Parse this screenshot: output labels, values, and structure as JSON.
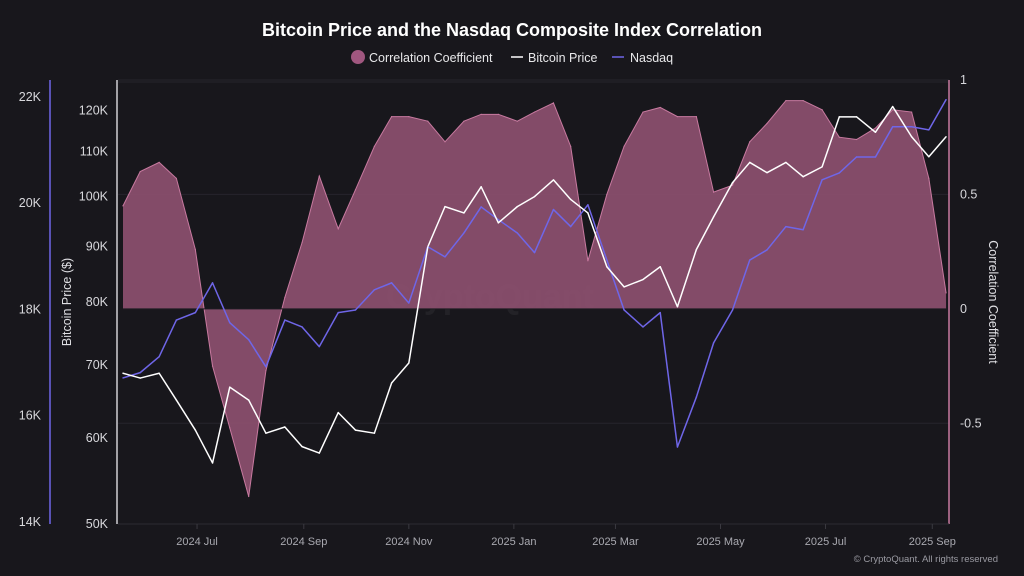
{
  "chart_data": {
    "type": "line",
    "title": "Bitcoin Price and the Nasdaq Composite Index Correlation",
    "legend": {
      "placement": "top-center",
      "entries": [
        {
          "name": "Correlation Coefficient",
          "color": "#a0577f",
          "marker": "circle"
        },
        {
          "name": "Bitcoin Price",
          "color": "#ffffff",
          "marker": "line"
        },
        {
          "name": "Nasdaq",
          "color": "#6f66e8",
          "marker": "line"
        }
      ]
    },
    "x": [
      "2024-05-19",
      "2024-05-29",
      "2024-06-09",
      "2024-06-19",
      "2024-06-30",
      "2024-07-10",
      "2024-07-20",
      "2024-07-31",
      "2024-08-10",
      "2024-08-21",
      "2024-08-31",
      "2024-09-10",
      "2024-09-21",
      "2024-10-01",
      "2024-10-12",
      "2024-10-22",
      "2024-11-01",
      "2024-11-12",
      "2024-11-22",
      "2024-12-03",
      "2024-12-13",
      "2024-12-23",
      "2025-01-03",
      "2025-01-13",
      "2025-01-24",
      "2025-02-03",
      "2025-02-13",
      "2025-02-24",
      "2025-03-06",
      "2025-03-17",
      "2025-03-27",
      "2025-04-06",
      "2025-04-17",
      "2025-04-27",
      "2025-05-08",
      "2025-05-18",
      "2025-05-28",
      "2025-06-08",
      "2025-06-18",
      "2025-06-29",
      "2025-07-09",
      "2025-07-19",
      "2025-07-30",
      "2025-08-09",
      "2025-08-20",
      "2025-08-30",
      "2025-09-09"
    ],
    "xlim": [
      "2024-05-19",
      "2025-09-11"
    ],
    "x_ticks": [
      {
        "date": "2024-07-01",
        "label": "2024 Jul"
      },
      {
        "date": "2024-09-01",
        "label": "2024 Sep"
      },
      {
        "date": "2024-11-01",
        "label": "2024 Nov"
      },
      {
        "date": "2025-01-01",
        "label": "2025 Jan"
      },
      {
        "date": "2025-03-01",
        "label": "2025 Mar"
      },
      {
        "date": "2025-05-01",
        "label": "2025 May"
      },
      {
        "date": "2025-07-01",
        "label": "2025 Jul"
      },
      {
        "date": "2025-09-01",
        "label": "2025 Sep"
      }
    ],
    "series": [
      {
        "name": "Correlation Coefficient",
        "type": "area",
        "axis": "right",
        "values": [
          0.45,
          0.6,
          0.64,
          0.57,
          0.26,
          -0.25,
          -0.52,
          -0.82,
          -0.27,
          0.05,
          0.29,
          0.58,
          0.35,
          0.52,
          0.71,
          0.84,
          0.84,
          0.82,
          0.73,
          0.82,
          0.85,
          0.85,
          0.82,
          0.86,
          0.9,
          0.71,
          0.21,
          0.5,
          0.71,
          0.86,
          0.88,
          0.84,
          0.84,
          0.51,
          0.54,
          0.73,
          0.81,
          0.91,
          0.91,
          0.87,
          0.75,
          0.74,
          0.79,
          0.87,
          0.86,
          0.57,
          0.07
        ]
      },
      {
        "name": "Bitcoin Price",
        "type": "line",
        "axis": "left-inner",
        "values": [
          68800,
          68100,
          68800,
          65000,
          61000,
          56900,
          66800,
          65000,
          60600,
          61400,
          58900,
          58100,
          63300,
          61000,
          60600,
          67400,
          70300,
          89900,
          97900,
          96600,
          102100,
          94600,
          97900,
          100000,
          103600,
          99400,
          96600,
          86200,
          82600,
          83900,
          86200,
          79200,
          89400,
          95800,
          103000,
          107500,
          105200,
          107500,
          104300,
          106500,
          118400,
          118400,
          114600,
          121000,
          113500,
          108800,
          113500
        ]
      },
      {
        "name": "Nasdaq",
        "type": "line",
        "axis": "left-outer",
        "values": [
          16710,
          16810,
          17110,
          17800,
          17940,
          18500,
          17750,
          17430,
          16920,
          17800,
          17670,
          17300,
          17940,
          17990,
          18370,
          18500,
          18120,
          19180,
          18990,
          19440,
          19930,
          19690,
          19440,
          19070,
          19880,
          19560,
          19970,
          18930,
          17990,
          17670,
          17940,
          15410,
          16350,
          17370,
          17990,
          18930,
          19120,
          19560,
          19500,
          20440,
          20570,
          20870,
          20870,
          21440,
          21440,
          21380,
          21950
        ]
      }
    ],
    "axes": {
      "nasdaq": {
        "ticks": [
          14000,
          16000,
          18000,
          20000,
          22000
        ],
        "tick_labels": [
          "14K",
          "16K",
          "18K",
          "20K",
          "22K"
        ],
        "ylim": [
          13960,
          22320
        ],
        "scale": "linear",
        "color": "#6f66e8"
      },
      "btc": {
        "label": "Bitcoin Price ($)",
        "ticks": [
          50000,
          60000,
          70000,
          80000,
          90000,
          100000,
          110000,
          120000
        ],
        "tick_labels": [
          "50K",
          "60K",
          "70K",
          "80K",
          "90K",
          "100K",
          "110K",
          "120K"
        ],
        "ylim": [
          50000,
          128000
        ],
        "scale": "log"
      },
      "corr": {
        "label": "Correlation Coefficient",
        "ticks": [
          -0.5,
          0,
          0.5,
          1
        ],
        "tick_labels": [
          "-0.5",
          "0",
          "0.5",
          "1"
        ],
        "ylim": [
          -0.94,
          1
        ],
        "scale": "linear",
        "color": "#c87aa0"
      }
    },
    "grid": true
  },
  "watermark": "CryptoQuant",
  "copyright": "© CryptoQuant. All rights reserved",
  "colors": {
    "background": "#18171c",
    "area_fill": "#874d6b",
    "area_stroke": "#c87aa0",
    "btc": "#ffffff",
    "nasdaq": "#6f66e8"
  }
}
